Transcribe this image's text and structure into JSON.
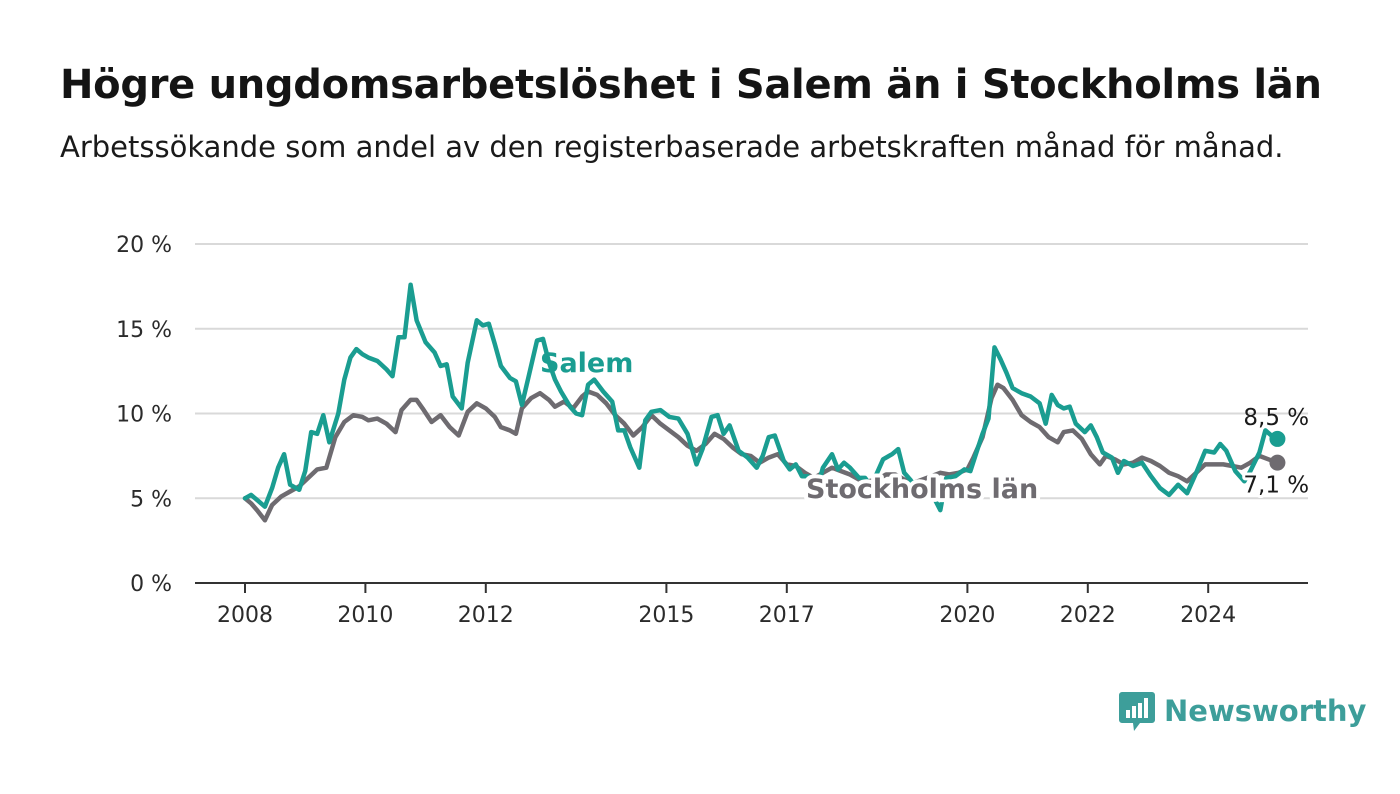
{
  "header": {
    "title": "Högre ungdomsarbetslöshet i Salem än i Stockholms län",
    "subtitle": "Arbetssökande som andel av den registerbaserade arbetskraften månad för månad."
  },
  "brand": {
    "name": "Newsworthy",
    "icon": "newsworthy-logo-icon",
    "color": "#3d9e9a"
  },
  "chart_data": {
    "type": "line",
    "xlim": [
      2008.0,
      2025.4
    ],
    "ylim": [
      0,
      20
    ],
    "x_ticks": [
      {
        "value": 2008,
        "label": "2008"
      },
      {
        "value": 2010,
        "label": "2010"
      },
      {
        "value": 2012,
        "label": "2012"
      },
      {
        "value": 2015,
        "label": "2015"
      },
      {
        "value": 2017,
        "label": "2017"
      },
      {
        "value": 2020,
        "label": "2020"
      },
      {
        "value": 2022,
        "label": "2022"
      },
      {
        "value": 2024,
        "label": "2024"
      }
    ],
    "y_ticks": [
      {
        "value": 0,
        "label": "0 %"
      },
      {
        "value": 5,
        "label": "5 %"
      },
      {
        "value": 10,
        "label": "10 %"
      },
      {
        "value": 15,
        "label": "15 %"
      },
      {
        "value": 20,
        "label": "20 %"
      }
    ],
    "grid": true,
    "series": [
      {
        "name": "Stockholms län",
        "color": "#6e6b70",
        "end_label": "7,1 %",
        "points": [
          [
            2008.0,
            5.0
          ],
          [
            2008.1,
            4.7
          ],
          [
            2008.2,
            4.3
          ],
          [
            2008.33,
            3.7
          ],
          [
            2008.45,
            4.6
          ],
          [
            2008.6,
            5.1
          ],
          [
            2008.75,
            5.4
          ],
          [
            2008.9,
            5.7
          ],
          [
            2009.05,
            6.2
          ],
          [
            2009.2,
            6.7
          ],
          [
            2009.35,
            6.8
          ],
          [
            2009.5,
            8.6
          ],
          [
            2009.65,
            9.5
          ],
          [
            2009.8,
            9.9
          ],
          [
            2009.95,
            9.8
          ],
          [
            2010.05,
            9.6
          ],
          [
            2010.2,
            9.7
          ],
          [
            2010.35,
            9.4
          ],
          [
            2010.5,
            8.9
          ],
          [
            2010.6,
            10.2
          ],
          [
            2010.75,
            10.8
          ],
          [
            2010.85,
            10.8
          ],
          [
            2010.95,
            10.3
          ],
          [
            2011.1,
            9.5
          ],
          [
            2011.25,
            9.9
          ],
          [
            2011.4,
            9.2
          ],
          [
            2011.55,
            8.7
          ],
          [
            2011.7,
            10.1
          ],
          [
            2011.85,
            10.6
          ],
          [
            2012.0,
            10.3
          ],
          [
            2012.15,
            9.8
          ],
          [
            2012.25,
            9.2
          ],
          [
            2012.4,
            9.0
          ],
          [
            2012.5,
            8.8
          ],
          [
            2012.6,
            10.3
          ],
          [
            2012.75,
            10.9
          ],
          [
            2012.9,
            11.2
          ],
          [
            2013.05,
            10.8
          ],
          [
            2013.15,
            10.4
          ],
          [
            2013.3,
            10.7
          ],
          [
            2013.45,
            10.3
          ],
          [
            2013.6,
            11.0
          ],
          [
            2013.7,
            11.3
          ],
          [
            2013.85,
            11.1
          ],
          [
            2014.0,
            10.6
          ],
          [
            2014.15,
            9.9
          ],
          [
            2014.3,
            9.4
          ],
          [
            2014.45,
            8.7
          ],
          [
            2014.6,
            9.2
          ],
          [
            2014.75,
            9.9
          ],
          [
            2014.9,
            9.4
          ],
          [
            2015.05,
            9.0
          ],
          [
            2015.2,
            8.6
          ],
          [
            2015.35,
            8.1
          ],
          [
            2015.5,
            7.8
          ],
          [
            2015.65,
            8.2
          ],
          [
            2015.8,
            8.8
          ],
          [
            2015.95,
            8.5
          ],
          [
            2016.1,
            8.0
          ],
          [
            2016.25,
            7.6
          ],
          [
            2016.4,
            7.5
          ],
          [
            2016.55,
            7.1
          ],
          [
            2016.7,
            7.4
          ],
          [
            2016.85,
            7.6
          ],
          [
            2017.0,
            7.0
          ],
          [
            2017.15,
            6.9
          ],
          [
            2017.3,
            6.5
          ],
          [
            2017.45,
            6.2
          ],
          [
            2017.6,
            6.5
          ],
          [
            2017.75,
            6.8
          ],
          [
            2017.9,
            6.6
          ],
          [
            2018.05,
            6.4
          ],
          [
            2018.2,
            6.1
          ],
          [
            2018.35,
            6.0
          ],
          [
            2018.5,
            6.1
          ],
          [
            2018.65,
            6.4
          ],
          [
            2018.8,
            6.4
          ],
          [
            2018.95,
            6.1
          ],
          [
            2019.1,
            5.9
          ],
          [
            2019.25,
            6.1
          ],
          [
            2019.4,
            6.3
          ],
          [
            2019.55,
            6.5
          ],
          [
            2019.7,
            6.4
          ],
          [
            2019.85,
            6.5
          ],
          [
            2020.0,
            6.7
          ],
          [
            2020.1,
            7.4
          ],
          [
            2020.25,
            8.6
          ],
          [
            2020.4,
            10.9
          ],
          [
            2020.5,
            11.7
          ],
          [
            2020.6,
            11.5
          ],
          [
            2020.75,
            10.8
          ],
          [
            2020.9,
            9.9
          ],
          [
            2021.05,
            9.5
          ],
          [
            2021.2,
            9.2
          ],
          [
            2021.35,
            8.6
          ],
          [
            2021.5,
            8.3
          ],
          [
            2021.6,
            8.9
          ],
          [
            2021.75,
            9.0
          ],
          [
            2021.9,
            8.5
          ],
          [
            2022.05,
            7.6
          ],
          [
            2022.2,
            7.0
          ],
          [
            2022.3,
            7.5
          ],
          [
            2022.45,
            7.3
          ],
          [
            2022.6,
            7.0
          ],
          [
            2022.75,
            7.1
          ],
          [
            2022.9,
            7.4
          ],
          [
            2023.05,
            7.2
          ],
          [
            2023.2,
            6.9
          ],
          [
            2023.35,
            6.5
          ],
          [
            2023.5,
            6.3
          ],
          [
            2023.65,
            6.0
          ],
          [
            2023.8,
            6.5
          ],
          [
            2023.95,
            7.0
          ],
          [
            2024.1,
            7.0
          ],
          [
            2024.25,
            7.0
          ],
          [
            2024.4,
            6.9
          ],
          [
            2024.55,
            6.8
          ],
          [
            2024.7,
            7.1
          ],
          [
            2024.85,
            7.5
          ],
          [
            2025.0,
            7.3
          ],
          [
            2025.15,
            7.1
          ]
        ]
      },
      {
        "name": "Salem",
        "color": "#1a9d91",
        "end_label": "8,5 %",
        "points": [
          [
            2008.0,
            5.0
          ],
          [
            2008.1,
            5.2
          ],
          [
            2008.2,
            4.9
          ],
          [
            2008.33,
            4.5
          ],
          [
            2008.45,
            5.6
          ],
          [
            2008.55,
            6.8
          ],
          [
            2008.65,
            7.6
          ],
          [
            2008.75,
            5.8
          ],
          [
            2008.9,
            5.5
          ],
          [
            2009.0,
            6.6
          ],
          [
            2009.1,
            8.9
          ],
          [
            2009.2,
            8.8
          ],
          [
            2009.3,
            9.9
          ],
          [
            2009.4,
            8.3
          ],
          [
            2009.55,
            10.0
          ],
          [
            2009.65,
            12.0
          ],
          [
            2009.75,
            13.3
          ],
          [
            2009.85,
            13.8
          ],
          [
            2009.95,
            13.5
          ],
          [
            2010.05,
            13.3
          ],
          [
            2010.2,
            13.1
          ],
          [
            2010.35,
            12.6
          ],
          [
            2010.45,
            12.2
          ],
          [
            2010.55,
            14.5
          ],
          [
            2010.65,
            14.5
          ],
          [
            2010.75,
            17.6
          ],
          [
            2010.85,
            15.5
          ],
          [
            2011.0,
            14.2
          ],
          [
            2011.15,
            13.6
          ],
          [
            2011.25,
            12.8
          ],
          [
            2011.35,
            12.9
          ],
          [
            2011.45,
            11.0
          ],
          [
            2011.6,
            10.3
          ],
          [
            2011.7,
            13.0
          ],
          [
            2011.85,
            15.5
          ],
          [
            2011.95,
            15.2
          ],
          [
            2012.05,
            15.3
          ],
          [
            2012.15,
            14.1
          ],
          [
            2012.25,
            12.8
          ],
          [
            2012.4,
            12.1
          ],
          [
            2012.5,
            11.9
          ],
          [
            2012.6,
            10.5
          ],
          [
            2012.7,
            12.0
          ],
          [
            2012.85,
            14.3
          ],
          [
            2012.95,
            14.4
          ],
          [
            2013.05,
            13.0
          ],
          [
            2013.15,
            12.0
          ],
          [
            2013.25,
            11.3
          ],
          [
            2013.4,
            10.4
          ],
          [
            2013.5,
            10.0
          ],
          [
            2013.6,
            9.9
          ],
          [
            2013.7,
            11.7
          ],
          [
            2013.8,
            12.0
          ],
          [
            2013.95,
            11.3
          ],
          [
            2014.1,
            10.7
          ],
          [
            2014.2,
            9.0
          ],
          [
            2014.3,
            9.0
          ],
          [
            2014.4,
            8.0
          ],
          [
            2014.55,
            6.8
          ],
          [
            2014.65,
            9.6
          ],
          [
            2014.75,
            10.1
          ],
          [
            2014.9,
            10.2
          ],
          [
            2015.05,
            9.8
          ],
          [
            2015.2,
            9.7
          ],
          [
            2015.35,
            8.8
          ],
          [
            2015.5,
            7.0
          ],
          [
            2015.6,
            7.9
          ],
          [
            2015.75,
            9.8
          ],
          [
            2015.85,
            9.9
          ],
          [
            2015.95,
            8.8
          ],
          [
            2016.05,
            9.3
          ],
          [
            2016.2,
            7.8
          ],
          [
            2016.35,
            7.4
          ],
          [
            2016.5,
            6.8
          ],
          [
            2016.6,
            7.5
          ],
          [
            2016.7,
            8.6
          ],
          [
            2016.8,
            8.7
          ],
          [
            2016.95,
            7.2
          ],
          [
            2017.05,
            6.7
          ],
          [
            2017.15,
            7.0
          ],
          [
            2017.25,
            6.3
          ],
          [
            2017.35,
            6.3
          ],
          [
            2017.5,
            5.5
          ],
          [
            2017.6,
            6.8
          ],
          [
            2017.75,
            7.6
          ],
          [
            2017.85,
            6.7
          ],
          [
            2017.95,
            7.1
          ],
          [
            2018.05,
            6.8
          ],
          [
            2018.2,
            6.2
          ],
          [
            2018.3,
            6.2
          ],
          [
            2018.4,
            5.7
          ],
          [
            2018.5,
            6.5
          ],
          [
            2018.6,
            7.3
          ],
          [
            2018.75,
            7.6
          ],
          [
            2018.85,
            7.9
          ],
          [
            2018.95,
            6.5
          ],
          [
            2019.05,
            6.1
          ],
          [
            2019.15,
            5.6
          ],
          [
            2019.3,
            5.5
          ],
          [
            2019.45,
            5.0
          ],
          [
            2019.55,
            4.3
          ],
          [
            2019.65,
            6.2
          ],
          [
            2019.8,
            6.3
          ],
          [
            2019.95,
            6.7
          ],
          [
            2020.05,
            6.6
          ],
          [
            2020.15,
            7.7
          ],
          [
            2020.25,
            8.8
          ],
          [
            2020.35,
            9.7
          ],
          [
            2020.45,
            13.9
          ],
          [
            2020.55,
            13.2
          ],
          [
            2020.65,
            12.4
          ],
          [
            2020.75,
            11.5
          ],
          [
            2020.9,
            11.2
          ],
          [
            2021.05,
            11.0
          ],
          [
            2021.2,
            10.6
          ],
          [
            2021.3,
            9.4
          ],
          [
            2021.4,
            11.1
          ],
          [
            2021.5,
            10.5
          ],
          [
            2021.6,
            10.3
          ],
          [
            2021.7,
            10.4
          ],
          [
            2021.8,
            9.4
          ],
          [
            2021.95,
            8.9
          ],
          [
            2022.05,
            9.3
          ],
          [
            2022.15,
            8.6
          ],
          [
            2022.25,
            7.7
          ],
          [
            2022.4,
            7.4
          ],
          [
            2022.5,
            6.5
          ],
          [
            2022.6,
            7.2
          ],
          [
            2022.75,
            6.9
          ],
          [
            2022.9,
            7.1
          ],
          [
            2023.05,
            6.3
          ],
          [
            2023.2,
            5.6
          ],
          [
            2023.35,
            5.2
          ],
          [
            2023.5,
            5.8
          ],
          [
            2023.65,
            5.3
          ],
          [
            2023.8,
            6.5
          ],
          [
            2023.95,
            7.8
          ],
          [
            2024.1,
            7.7
          ],
          [
            2024.2,
            8.2
          ],
          [
            2024.3,
            7.8
          ],
          [
            2024.45,
            6.6
          ],
          [
            2024.6,
            6.0
          ],
          [
            2024.7,
            6.6
          ],
          [
            2024.85,
            7.7
          ],
          [
            2024.95,
            9.0
          ],
          [
            2025.05,
            8.7
          ],
          [
            2025.15,
            8.5
          ]
        ]
      }
    ]
  }
}
